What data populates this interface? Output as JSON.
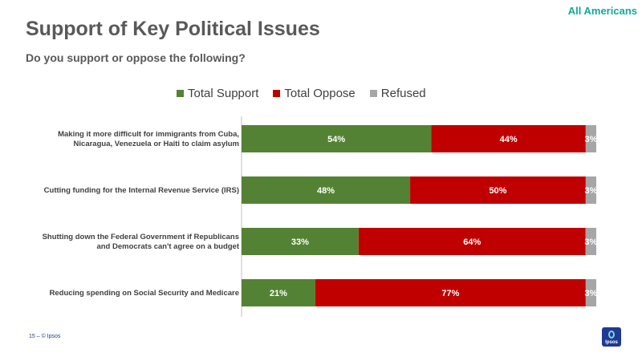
{
  "header": {
    "audience": "All Americans",
    "title": "Support of Key Political Issues",
    "subtitle": "Do you support or oppose the following?"
  },
  "chart_data": {
    "type": "bar",
    "orientation": "horizontal",
    "stacked": true,
    "categories": [
      [
        "Making it more difficult for immigrants from Cuba,",
        "Nicaragua, Venezuela or Haiti to claim asylum"
      ],
      [
        "Cutting funding for the Internal Revenue Service (IRS)"
      ],
      [
        "Shutting down the Federal Government if Republicans",
        "and Democrats can't agree on a budget"
      ],
      [
        "Reducing spending on Social Security and Medicare"
      ]
    ],
    "series": [
      {
        "name": "Total Support",
        "color": "#548235",
        "values": [
          54,
          48,
          33,
          21
        ]
      },
      {
        "name": "Total Oppose",
        "color": "#c00000",
        "values": [
          44,
          50,
          64,
          77
        ]
      },
      {
        "name": "Refused",
        "color": "#a6a6a6",
        "values": [
          3,
          3,
          3,
          3
        ]
      }
    ],
    "value_suffix": "%",
    "xlim": [
      0,
      100
    ],
    "legend_position": "top"
  },
  "footer": {
    "page": "15 –",
    "copyright": "© Ipsos"
  },
  "logo": {
    "text": "Ipsos"
  }
}
